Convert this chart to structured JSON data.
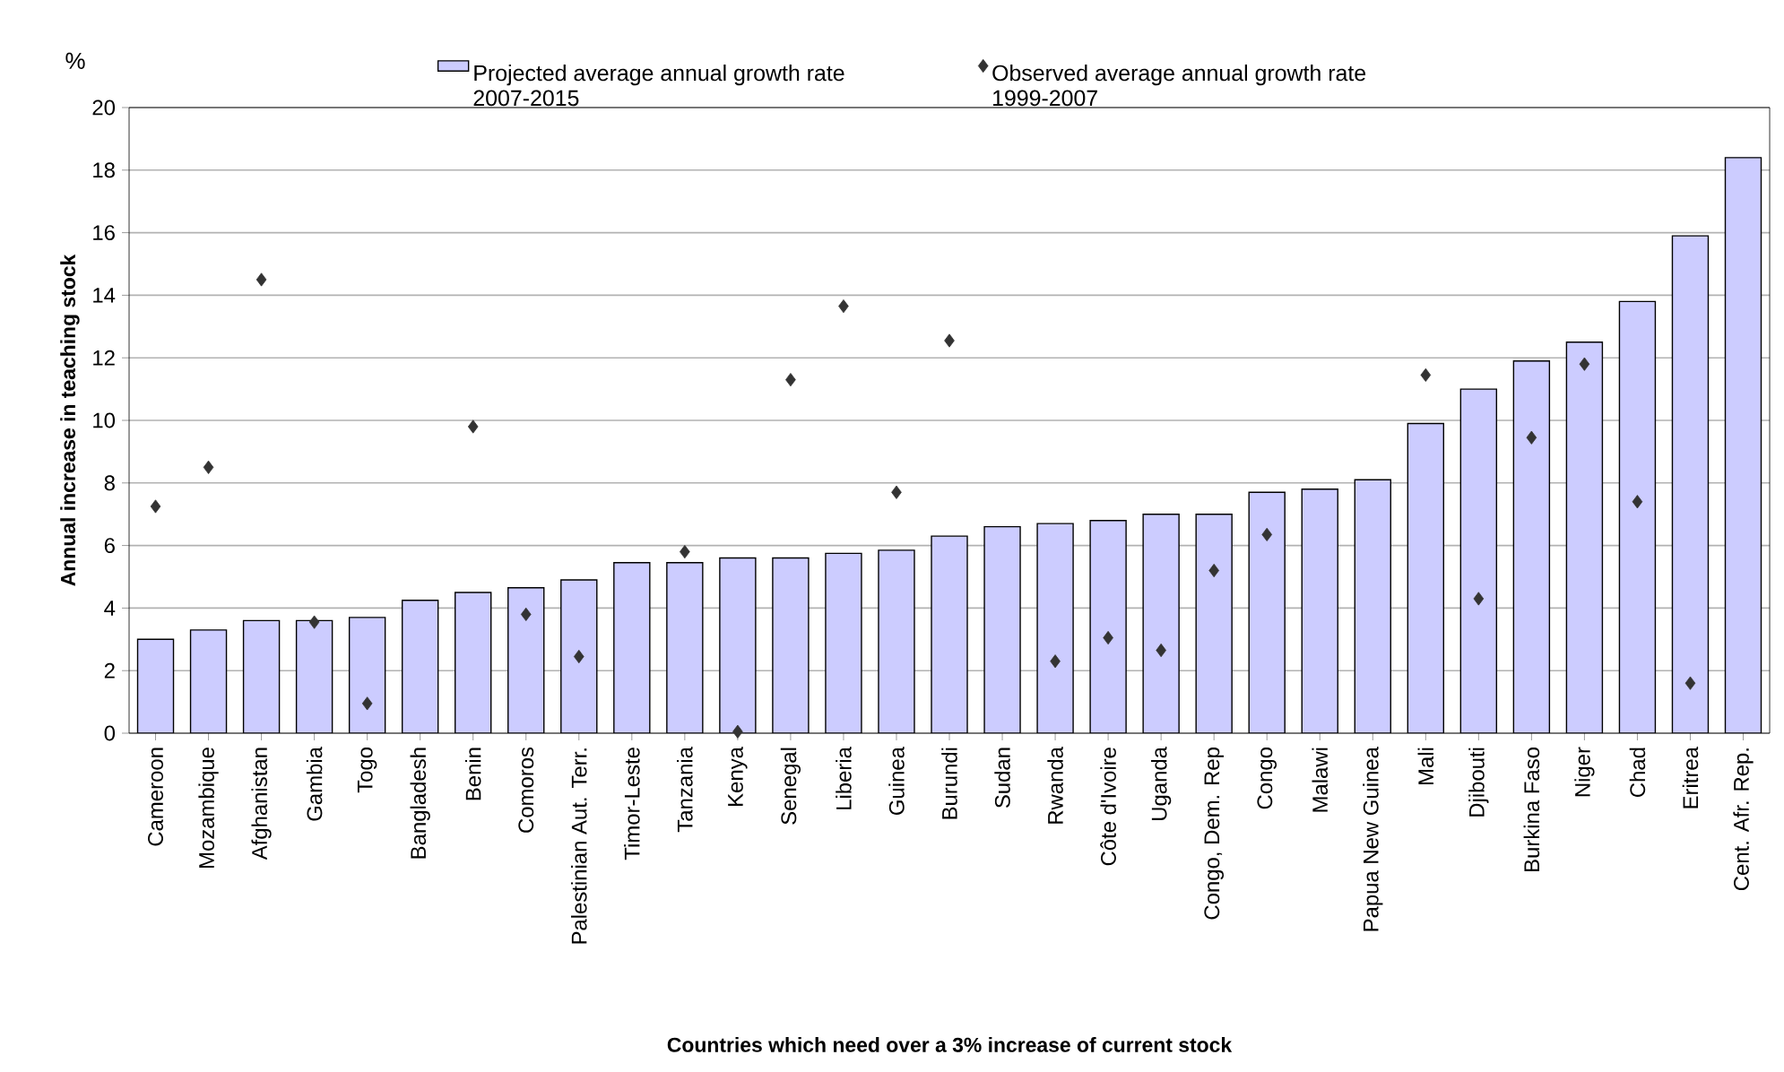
{
  "chart_data": {
    "type": "bar",
    "xlabel": "Countries which need over a 3% increase of current stock",
    "ylabel": "Annual increase in teaching stock",
    "annotations": [
      "%"
    ],
    "categories": [
      "Cameroon",
      "Mozambique",
      "Afghanistan",
      "Gambia",
      "Togo",
      "Bangladesh",
      "Benin",
      "Comoros",
      "Palestinian Aut. Terr.",
      "Timor-Leste",
      "Tanzania",
      "Kenya",
      "Senegal",
      "Liberia",
      "Guinea",
      "Burundi",
      "Sudan",
      "Rwanda",
      "Côte d'Ivoire",
      "Uganda",
      "Congo, Dem. Rep",
      "Congo",
      "Malawi",
      "Papua New Guinea",
      "Mali",
      "Djibouti",
      "Burkina Faso",
      "Niger",
      "Chad",
      "Eritrea",
      "Cent. Afr. Rep."
    ],
    "series": [
      {
        "name": "Projected average annual growth rate 2007-2015",
        "type": "bar",
        "color": "#ccccff",
        "values": [
          3.0,
          3.3,
          3.6,
          3.6,
          3.7,
          4.25,
          4.5,
          4.65,
          4.9,
          5.45,
          5.45,
          5.6,
          5.6,
          5.75,
          5.85,
          6.3,
          6.6,
          6.7,
          6.8,
          7.0,
          7.0,
          7.7,
          7.8,
          8.1,
          9.9,
          11.0,
          11.9,
          12.5,
          13.8,
          15.9,
          18.4
        ]
      },
      {
        "name": "Observed average annual growth rate 1999-2007",
        "type": "scatter",
        "marker": "diamond",
        "color": "#333333",
        "x": [
          "Cameroon",
          "Mozambique",
          "Afghanistan",
          "Gambia",
          "Togo",
          "Bangladesh",
          "Benin",
          "Comoros",
          "Palestinian Aut. Terr.",
          "Timor-Leste",
          "Tanzania",
          "Kenya",
          "Senegal",
          "Liberia",
          "Guinea",
          "Burundi",
          "Sudan",
          "Rwanda",
          "Côte d'Ivoire",
          "Uganda",
          "Congo, Dem. Rep",
          "Congo",
          "Malawi",
          "Papua New Guinea",
          "Mali",
          "Djibouti",
          "Burkina Faso",
          "Niger",
          "Chad",
          "Eritrea",
          "Cent. Afr. Rep."
        ],
        "values": [
          7.25,
          8.5,
          14.5,
          3.55,
          0.95,
          null,
          9.8,
          3.8,
          2.45,
          null,
          5.8,
          0.05,
          11.3,
          13.65,
          7.7,
          12.55,
          null,
          2.3,
          3.05,
          2.65,
          5.2,
          6.35,
          null,
          null,
          11.45,
          4.3,
          9.45,
          11.8,
          7.4,
          1.6,
          null
        ]
      }
    ],
    "ylim": [
      0,
      20
    ],
    "yticks": [
      0,
      2,
      4,
      6,
      8,
      10,
      12,
      14,
      16,
      18,
      20
    ],
    "grid": "y",
    "legend": "top"
  }
}
